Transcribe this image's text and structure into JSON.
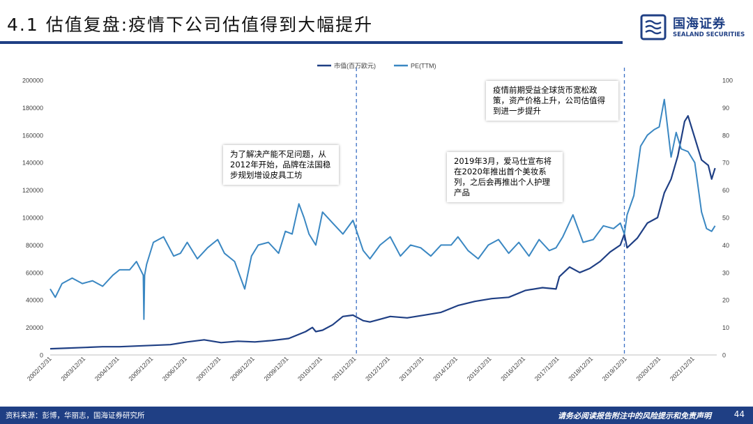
{
  "header": {
    "title": "4.1 估值复盘:疫情下公司估值得到大幅提升",
    "logo_cn": "国海证券",
    "logo_en": "SEALAND SECURITIES"
  },
  "colors": {
    "brand": "#1f3f84",
    "series_market_cap": "#1f3f84",
    "series_pe": "#3a87c2"
  },
  "annotations": {
    "a1": "为了解决产能不足问题，从2012年开始，品牌在法国稳步规划增设皮具工坊",
    "a2": "2019年3月，爱马仕宣布将在2020年推出首个美妆系列，之后会再推出个人护理产品",
    "a3": "疫情前期受益全球货币宽松政策，资产价格上升，公司估值得到进一步提升"
  },
  "chart_data": {
    "type": "line",
    "legend_position": "top-center",
    "grid": false,
    "x_tick_labels": [
      "2002/12/31",
      "2003/12/31",
      "2004/12/31",
      "2005/12/31",
      "2006/12/31",
      "2007/12/31",
      "2008/12/31",
      "2009/12/31",
      "2010/12/31",
      "2011/12/31",
      "2012/12/31",
      "2013/12/31",
      "2014/12/31",
      "2015/12/31",
      "2016/12/31",
      "2017/12/31",
      "2018/12/31",
      "2019/12/31",
      "2020/12/31",
      "2021/12/31"
    ],
    "xlim": [
      2002.95,
      2022.65
    ],
    "y_left": {
      "ticks": [
        0,
        20000,
        40000,
        60000,
        80000,
        100000,
        120000,
        140000,
        160000,
        180000,
        200000
      ],
      "range": [
        0,
        200000
      ]
    },
    "y_right": {
      "ticks": [
        0,
        10,
        20,
        30,
        40,
        50,
        60,
        70,
        80,
        90,
        100
      ],
      "range": [
        0,
        100
      ]
    },
    "vertical_markers": [
      2012.0,
      2019.92
    ],
    "series": [
      {
        "name": "市值(百万欧元)",
        "axis": "left",
        "x": [
          2002.95,
          2003.5,
          2004.0,
          2004.5,
          2005.0,
          2005.5,
          2006.0,
          2006.5,
          2007.0,
          2007.5,
          2008.0,
          2008.5,
          2009.0,
          2009.5,
          2010.0,
          2010.5,
          2010.7,
          2010.8,
          2011.0,
          2011.3,
          2011.6,
          2011.9,
          2012.2,
          2012.4,
          2012.7,
          2013.0,
          2013.5,
          2014.0,
          2014.5,
          2015.0,
          2015.5,
          2016.0,
          2016.5,
          2017.0,
          2017.5,
          2017.9,
          2018.0,
          2018.3,
          2018.6,
          2018.9,
          2019.2,
          2019.5,
          2019.8,
          2019.92,
          2020.0,
          2020.3,
          2020.6,
          2020.9,
          2021.1,
          2021.3,
          2021.5,
          2021.7,
          2021.8,
          2022.0,
          2022.2,
          2022.4,
          2022.5,
          2022.6
        ],
        "values": [
          4500,
          5000,
          5500,
          6000,
          6000,
          6500,
          7000,
          7500,
          9500,
          11000,
          9000,
          10000,
          9500,
          10500,
          12000,
          17000,
          20000,
          17000,
          18000,
          22000,
          28000,
          29000,
          25000,
          24000,
          26000,
          28000,
          27000,
          29000,
          31000,
          36000,
          39000,
          41000,
          42000,
          47000,
          49000,
          48000,
          57000,
          64000,
          60000,
          63000,
          68000,
          75000,
          80000,
          88000,
          78000,
          85000,
          96000,
          100000,
          118000,
          128000,
          145000,
          170000,
          174000,
          158000,
          142000,
          138000,
          128000,
          136000
        ]
      },
      {
        "name": "PE(TTM)",
        "axis": "right",
        "x": [
          2002.95,
          2003.1,
          2003.3,
          2003.6,
          2003.9,
          2004.2,
          2004.5,
          2004.8,
          2005.0,
          2005.3,
          2005.5,
          2005.7,
          2005.72,
          2005.74,
          2005.8,
          2006.0,
          2006.3,
          2006.6,
          2006.8,
          2007.0,
          2007.3,
          2007.6,
          2007.9,
          2008.1,
          2008.4,
          2008.7,
          2008.9,
          2009.1,
          2009.4,
          2009.7,
          2009.9,
          2010.1,
          2010.3,
          2010.45,
          2010.6,
          2010.8,
          2011.0,
          2011.3,
          2011.6,
          2011.9,
          2012.2,
          2012.4,
          2012.7,
          2013.0,
          2013.3,
          2013.6,
          2013.9,
          2014.2,
          2014.5,
          2014.8,
          2015.0,
          2015.3,
          2015.6,
          2015.9,
          2016.2,
          2016.5,
          2016.8,
          2017.1,
          2017.4,
          2017.7,
          2017.9,
          2018.1,
          2018.4,
          2018.7,
          2019.0,
          2019.3,
          2019.6,
          2019.8,
          2019.92,
          2020.0,
          2020.2,
          2020.4,
          2020.6,
          2020.8,
          2020.95,
          2021.1,
          2021.3,
          2021.45,
          2021.6,
          2021.8,
          2022.0,
          2022.2,
          2022.35,
          2022.5,
          2022.6
        ],
        "values": [
          24,
          21,
          26,
          28,
          26,
          27,
          25,
          29,
          31,
          31,
          34,
          29,
          13,
          29,
          33,
          41,
          43,
          36,
          37,
          41,
          35,
          39,
          42,
          37,
          34,
          24,
          36,
          40,
          41,
          37,
          45,
          44,
          55,
          50,
          44,
          40,
          52,
          48,
          44,
          49,
          38,
          35,
          40,
          43,
          36,
          40,
          39,
          36,
          40,
          40,
          43,
          38,
          35,
          40,
          42,
          37,
          41,
          36,
          42,
          38,
          39,
          43,
          51,
          41,
          42,
          47,
          46,
          48,
          44,
          51,
          58,
          76,
          80,
          82,
          83,
          93,
          72,
          81,
          75,
          74,
          70,
          52,
          46,
          45,
          47
        ]
      }
    ]
  },
  "footer": {
    "source": "资料来源：彭博，华丽志，国海证券研究所",
    "disclaimer": "请务必阅读报告附注中的风险提示和免责声明",
    "page": "44"
  }
}
